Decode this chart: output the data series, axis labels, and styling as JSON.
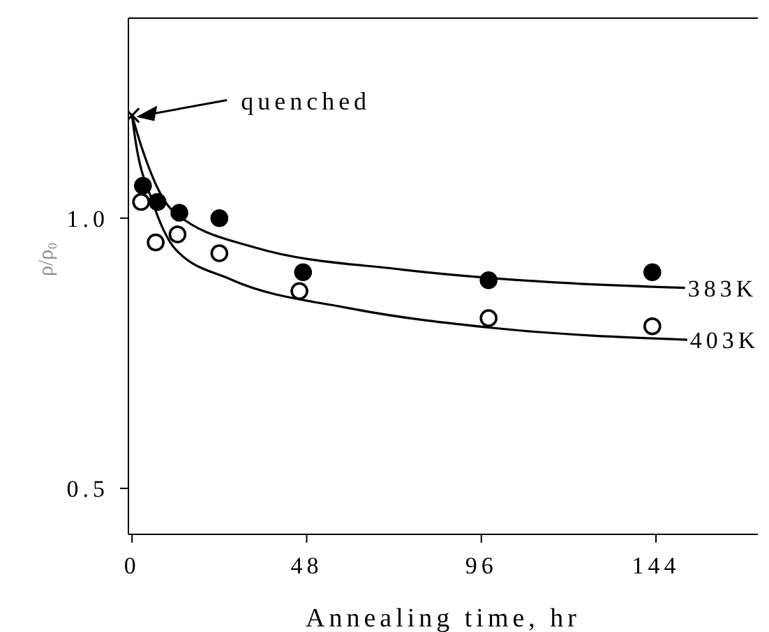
{
  "chart_data": {
    "type": "scatter",
    "xlabel": "Annealing time, hr",
    "ylabel": "ρ/ρ₀",
    "xlim": [
      -1,
      172
    ],
    "ylim": [
      0.415,
      1.37
    ],
    "xticks": [
      0,
      48,
      96,
      144
    ],
    "yticks": [
      {
        "value": 0.5,
        "label": "0.5"
      },
      {
        "value": 1,
        "label": "1.0"
      }
    ],
    "annotations": [
      {
        "text": "quenched",
        "x": 0,
        "y": 1.19
      }
    ],
    "series": [
      {
        "marker": "cross",
        "color": "#000000",
        "x": [
          0
        ],
        "values": [
          1.19
        ]
      },
      {
        "marker": "circle",
        "color": "#000000",
        "x": [
          3,
          7,
          13,
          24,
          47,
          98,
          143
        ],
        "values": [
          1.06,
          1.03,
          1.01,
          1.0,
          0.9,
          0.885,
          0.9
        ]
      },
      {
        "marker": "circle",
        "color": "#ffffff",
        "x": [
          2.5,
          6.5,
          12.5,
          24,
          46,
          98,
          143
        ],
        "values": [
          1.03,
          0.955,
          0.97,
          0.935,
          0.865,
          0.815,
          0.8
        ]
      },
      {
        "type": "line",
        "name": "383K",
        "color": "#000000",
        "x": [
          0,
          2.7,
          11,
          33.6,
          74,
          114,
          152
        ],
        "values": [
          1.19,
          1.13,
          1.015,
          0.946,
          0.905,
          0.882,
          0.871
        ]
      },
      {
        "type": "line",
        "name": "403K",
        "color": "#000000",
        "x": [
          0,
          0.8,
          5.5,
          12,
          27,
          60,
          100.5,
          152.6
        ],
        "values": [
          1.19,
          1.15,
          1.033,
          0.942,
          0.887,
          0.833,
          0.796,
          0.775
        ]
      }
    ]
  }
}
